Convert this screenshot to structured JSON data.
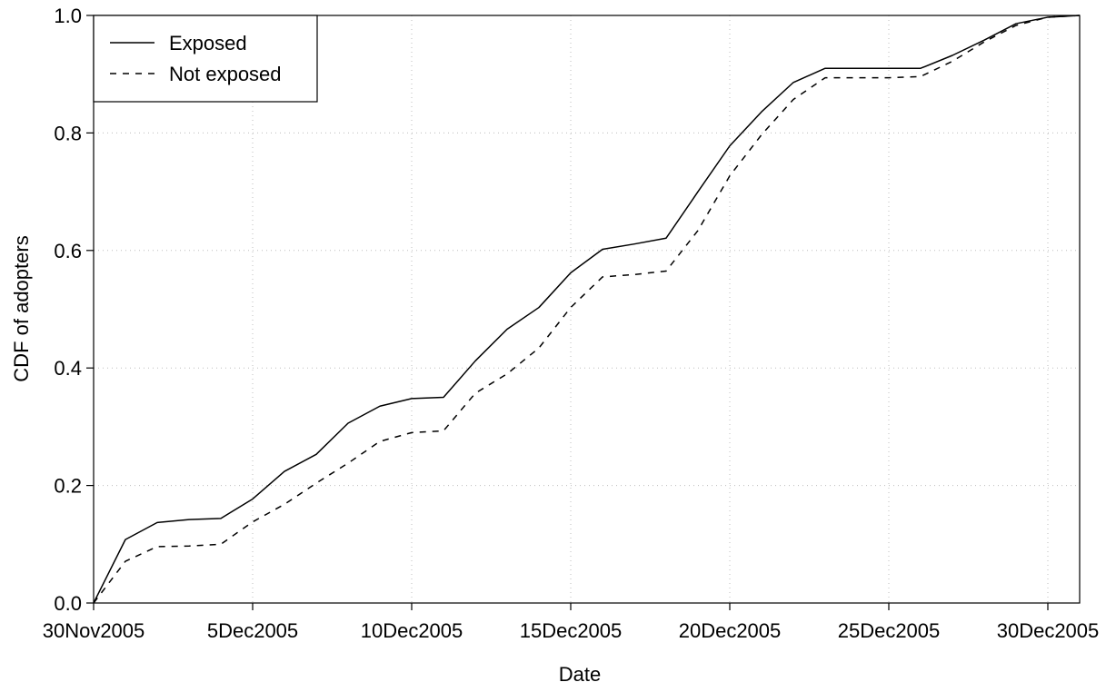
{
  "chart_data": {
    "type": "line",
    "xlabel": "Date",
    "ylabel": "CDF of adopters",
    "x_axis_type": "date",
    "xlim": [
      "2005-11-30",
      "2005-12-31"
    ],
    "ylim": [
      0,
      1
    ],
    "x_ticks": [
      {
        "date": "2005-11-30",
        "label": "30Nov2005"
      },
      {
        "date": "2005-12-05",
        "label": "5Dec2005"
      },
      {
        "date": "2005-12-10",
        "label": "10Dec2005"
      },
      {
        "date": "2005-12-15",
        "label": "15Dec2005"
      },
      {
        "date": "2005-12-20",
        "label": "20Dec2005"
      },
      {
        "date": "2005-12-25",
        "label": "25Dec2005"
      },
      {
        "date": "2005-12-30",
        "label": "30Dec2005"
      }
    ],
    "y_ticks": [
      "0.0",
      "0.2",
      "0.4",
      "0.6",
      "0.8",
      "1.0"
    ],
    "grid": true,
    "legend_position": "top-left",
    "x": [
      "2005-11-30",
      "2005-12-01",
      "2005-12-02",
      "2005-12-03",
      "2005-12-04",
      "2005-12-05",
      "2005-12-06",
      "2005-12-07",
      "2005-12-08",
      "2005-12-09",
      "2005-12-10",
      "2005-12-11",
      "2005-12-12",
      "2005-12-13",
      "2005-12-14",
      "2005-12-15",
      "2005-12-16",
      "2005-12-17",
      "2005-12-18",
      "2005-12-19",
      "2005-12-20",
      "2005-12-21",
      "2005-12-22",
      "2005-12-23",
      "2005-12-24",
      "2005-12-25",
      "2005-12-26",
      "2005-12-27",
      "2005-12-28",
      "2005-12-29",
      "2005-12-30",
      "2005-12-31"
    ],
    "series": [
      {
        "name": "Exposed",
        "style": "solid",
        "values": [
          0.0,
          0.108,
          0.137,
          0.142,
          0.144,
          0.177,
          0.224,
          0.253,
          0.306,
          0.335,
          0.348,
          0.35,
          0.412,
          0.466,
          0.503,
          0.562,
          0.602,
          0.611,
          0.621,
          0.7,
          0.778,
          0.836,
          0.886,
          0.91,
          0.91,
          0.91,
          0.91,
          0.932,
          0.958,
          0.986,
          0.997,
          1.0
        ]
      },
      {
        "name": "Not exposed",
        "style": "dashed",
        "values": [
          0.0,
          0.071,
          0.096,
          0.097,
          0.1,
          0.138,
          0.168,
          0.204,
          0.238,
          0.275,
          0.29,
          0.293,
          0.357,
          0.39,
          0.434,
          0.503,
          0.555,
          0.559,
          0.565,
          0.634,
          0.727,
          0.797,
          0.857,
          0.894,
          0.894,
          0.894,
          0.896,
          0.922,
          0.955,
          0.983,
          0.997,
          1.0
        ]
      }
    ]
  }
}
